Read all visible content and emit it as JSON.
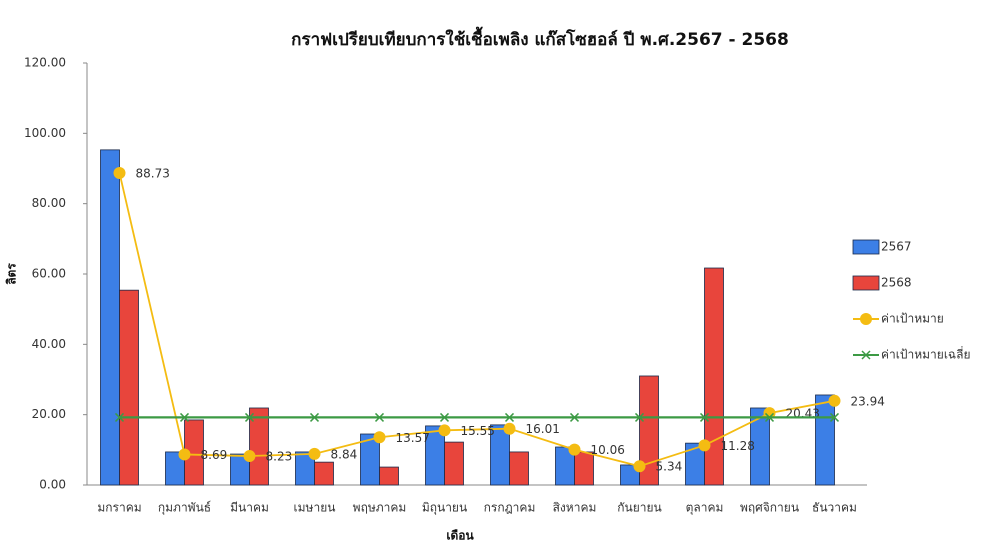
{
  "chart_data": {
    "type": "bar-line",
    "title": "กราฟเปรียบเทียบการใช้เชื้อเพลิง     แก๊สโซฮอล์  ปี พ.ศ.2567 - 2568",
    "x_label": "เดือน",
    "y_label": "ลิตร",
    "categories": [
      "มกราคม",
      "กุมภาพันธ์",
      "มีนาคม",
      "เมษายน",
      "พฤษภาคม",
      "มิถุนายน",
      "กรกฎาคม",
      "สิงหาคม",
      "กันยายน",
      "ตุลาคม",
      "พฤศจิกายน",
      "ธันวาคม"
    ],
    "series": [
      {
        "name": "2567",
        "type": "bar",
        "color": "#3c7fe6",
        "values": [
          95.3,
          9.4,
          8.8,
          9.4,
          14.5,
          16.8,
          17.1,
          10.8,
          5.7,
          11.9,
          21.9,
          25.6
        ]
      },
      {
        "name": "2568",
        "type": "bar",
        "color": "#e8453c",
        "values": [
          55.4,
          18.5,
          21.9,
          6.5,
          5.1,
          12.2,
          9.4,
          9.4,
          31.0,
          61.7,
          null,
          null
        ]
      },
      {
        "name": "ค่าเป้าหมาย",
        "type": "line",
        "marker": "circle",
        "data_labels": true,
        "color": "#f4bc12",
        "values": [
          88.73,
          8.69,
          8.23,
          8.84,
          13.57,
          15.55,
          16.01,
          10.06,
          5.34,
          11.28,
          20.43,
          23.94
        ]
      },
      {
        "name": "ค่าเป้าหมายเฉลี่ย",
        "type": "line",
        "marker": "x",
        "color": "#3c9a44",
        "values": [
          19.22,
          19.22,
          19.22,
          19.22,
          19.22,
          19.22,
          19.22,
          19.22,
          19.22,
          19.22,
          19.22,
          19.22
        ]
      }
    ],
    "ylim": [
      0,
      120
    ],
    "yticks": [
      {
        "value": 0,
        "label": "0.00"
      },
      {
        "value": 20,
        "label": "20.00"
      },
      {
        "value": 40,
        "label": "40.00"
      },
      {
        "value": 60,
        "label": "60.00"
      },
      {
        "value": 80,
        "label": "80.00"
      },
      {
        "value": 100,
        "label": "100.00"
      },
      {
        "value": 120,
        "label": "120.00"
      }
    ],
    "legend": "right"
  }
}
